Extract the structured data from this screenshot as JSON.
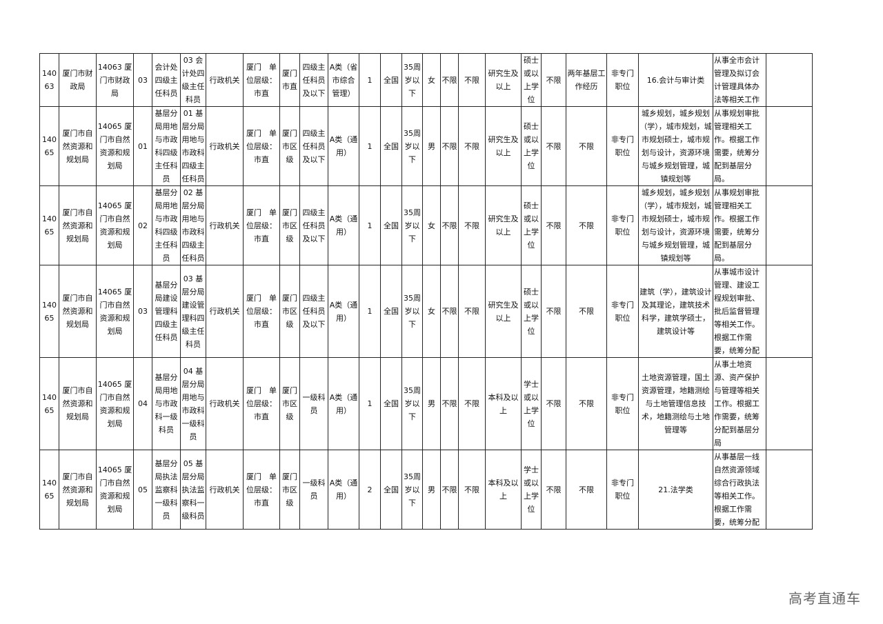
{
  "table": {
    "rows": [
      [
        "140\n63",
        "厦门市财政局",
        "14063 厦门市财政局",
        "03",
        "会计处四级主任科员",
        "03 会计处四级主任科员",
        "行政机关",
        "厦门　单位层级：市直",
        "厦门市直",
        "四级主任科员及以下",
        "A类（省市综合管理）",
        "1",
        "全国",
        "35周岁以下",
        "女",
        "不限",
        "不限",
        "研究生及以上",
        "硕士或以上学位",
        "不限",
        "两年基层工作经历",
        "非专门职位",
        "16.会计与审计类",
        "从事全市会计管理及拟订会计管理具体办法等相关工作",
        ""
      ],
      [
        "140\n65",
        "厦门市自然资源和规划局",
        "14065 厦门市自然资源和规划局",
        "01",
        "基层分局用地与市政科四级主任科员",
        "01 基层分局用地与市政科四级主任科员",
        "行政机关",
        "厦门　单位层级：市直",
        "厦门市区级",
        "四级主任科员及以下",
        "A类（通用）",
        "1",
        "全国",
        "35周岁以下",
        "男",
        "不限",
        "不限",
        "研究生及以上",
        "硕士或以上学位",
        "不限",
        "不限",
        "非专门职位",
        "城乡规划，城乡规划（学），城市规划，城市规划硕士，城市规划与设计，资源环境与城乡规划管理，城镇规划等",
        "从事规划审批管理相关工作。根据工作需要，统筹分配到基层分局。",
        ""
      ],
      [
        "140\n65",
        "厦门市自然资源和规划局",
        "14065 厦门市自然资源和规划局",
        "02",
        "基层分局用地与市政科四级主任科员",
        "02 基层分局用地与市政科四级主任科员",
        "行政机关",
        "厦门　单位层级：市直",
        "厦门市区级",
        "四级主任科员及以下",
        "A类（通用）",
        "1",
        "全国",
        "35周岁以下",
        "女",
        "不限",
        "不限",
        "研究生及以上",
        "硕士或以上学位",
        "不限",
        "不限",
        "非专门职位",
        "城乡规划，城乡规划（学），城市规划，城市规划硕士，城市规划与设计，资源环境与城乡规划管理，城镇规划等",
        "从事规划审批管理相关工作。根据工作需要，统筹分配到基层分局。",
        ""
      ],
      [
        "140\n65",
        "厦门市自然资源和规划局",
        "14065 厦门市自然资源和规划局",
        "03",
        "基层分局建设管理科四级主任科员",
        "03 基层分局建设管理科四级主任科员",
        "行政机关",
        "厦门　单位层级：市直",
        "厦门市区级",
        "四级主任科员及以下",
        "A类（通用）",
        "1",
        "全国",
        "35周岁以下",
        "女",
        "不限",
        "不限",
        "研究生及以上",
        "硕士或以上学位",
        "不限",
        "不限",
        "非专门职位",
        "建筑（学），建筑设计及其理论，建筑技术科学，建筑学硕士，建筑设计等",
        "从事城市设计管理、建设工程规划审批、批后监督管理等相关工作。根据工作需要，统筹分配",
        ""
      ],
      [
        "140\n65",
        "厦门市自然资源和规划局",
        "14065 厦门市自然资源和规划局",
        "04",
        "基层分局用地与市政科一级科员",
        "04 基层分局用地与市政科一级科员",
        "行政机关",
        "厦门　单位层级：市直",
        "厦门市区级",
        "一级科员",
        "A类（通用）",
        "1",
        "全国",
        "35周岁以下",
        "男",
        "不限",
        "不限",
        "本科及以上",
        "学士或以上学位",
        "不限",
        "不限",
        "非专门职位",
        "土地资源管理，国土资源管理，地籍测绘与土地管理信息技术，地籍测绘与土地管理等",
        "从事土地资源、资产保护与管理等相关工作。根据工作需要，统筹分配到基层分局",
        ""
      ],
      [
        "140\n65",
        "厦门市自然资源和规划局",
        "14065 厦门市自然资源和规划局",
        "05",
        "基层分局执法监察科一级科员",
        "05 基层分局执法监察科一级科员",
        "行政机关",
        "厦门　单位层级：市直",
        "厦门市区级",
        "一级科员",
        "A类（通用）",
        "2",
        "全国",
        "35周岁以下",
        "男",
        "不限",
        "不限",
        "本科及以上",
        "学士或以上学位",
        "不限",
        "不限",
        "非专门职位",
        "21.法学类",
        "从事基层一线自然资源领域综合行政执法等相关工作。根据工作需要，统筹分配",
        ""
      ]
    ]
  },
  "watermark": "高考直通车"
}
